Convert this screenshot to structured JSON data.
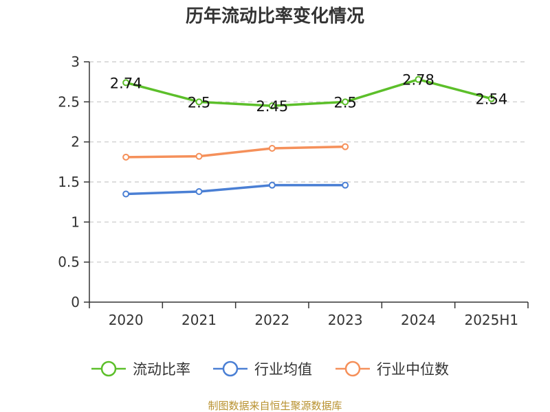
{
  "chart_data": {
    "type": "line",
    "title": "历年流动比率变化情况",
    "categories": [
      "2020",
      "2021",
      "2022",
      "2023",
      "2024",
      "2025H1"
    ],
    "ylim": [
      0,
      3
    ],
    "yticks": [
      "0",
      "0.5",
      "1",
      "1.5",
      "2",
      "2.5",
      "3"
    ],
    "grid": true,
    "legend_position": "bottom",
    "series": [
      {
        "name": "流动比率",
        "color": "#5cbf2a",
        "values": [
          2.74,
          2.5,
          2.45,
          2.5,
          2.78,
          2.54
        ],
        "labels": [
          "2.74",
          "2.5",
          "2.45",
          "2.5",
          "2.78",
          "2.54"
        ]
      },
      {
        "name": "行业均值",
        "color": "#4a7fd4",
        "values": [
          1.35,
          1.38,
          1.46,
          1.46,
          null,
          null
        ]
      },
      {
        "name": "行业中位数",
        "color": "#f5905a",
        "values": [
          1.81,
          1.82,
          1.92,
          1.94,
          null,
          null
        ]
      }
    ],
    "source": "制图数据来自恒生聚源数据库"
  }
}
